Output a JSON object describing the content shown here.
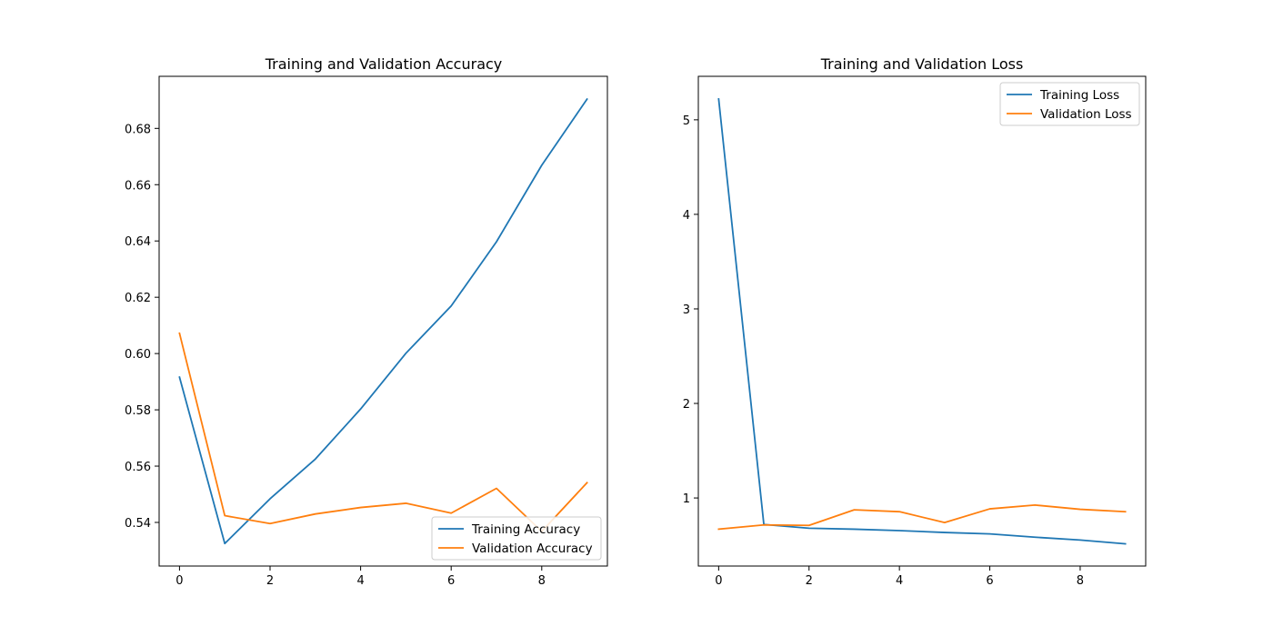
{
  "colors": {
    "series_1": "#1f77b4",
    "series_2": "#ff7f0e"
  },
  "chart_data": [
    {
      "type": "line",
      "title": "Training and Validation Accuracy",
      "xlabel": "",
      "ylabel": "",
      "xlim": [
        -0.45,
        9.45
      ],
      "ylim": [
        0.5245,
        0.6985
      ],
      "xticks": [
        0,
        2,
        4,
        6,
        8
      ],
      "yticks": [
        0.54,
        0.56,
        0.58,
        0.6,
        0.62,
        0.64,
        0.66,
        0.68
      ],
      "ytick_labels": [
        "0.54",
        "0.56",
        "0.58",
        "0.60",
        "0.62",
        "0.64",
        "0.66",
        "0.68"
      ],
      "grid": false,
      "legend": "lower-right",
      "x": [
        0,
        1,
        2,
        3,
        4,
        5,
        6,
        7,
        8,
        9
      ],
      "series": [
        {
          "name": "Training Accuracy",
          "values": [
            0.5916,
            0.5325,
            0.5484,
            0.5625,
            0.5803,
            0.6001,
            0.6169,
            0.6397,
            0.6669,
            0.6904
          ]
        },
        {
          "name": "Validation Accuracy",
          "values": [
            0.6072,
            0.5424,
            0.5396,
            0.543,
            0.5453,
            0.5468,
            0.5433,
            0.5521,
            0.5368,
            0.5541
          ]
        }
      ]
    },
    {
      "type": "line",
      "title": "Training and Validation Loss",
      "xlabel": "",
      "ylabel": "",
      "xlim": [
        -0.45,
        9.45
      ],
      "ylim": [
        0.28,
        5.46
      ],
      "xticks": [
        0,
        2,
        4,
        6,
        8
      ],
      "yticks": [
        1,
        2,
        3,
        4,
        5
      ],
      "ytick_labels": [
        "1",
        "2",
        "3",
        "4",
        "5"
      ],
      "grid": false,
      "legend": "upper-right",
      "x": [
        0,
        1,
        2,
        3,
        4,
        5,
        6,
        7,
        8,
        9
      ],
      "series": [
        {
          "name": "Training Loss",
          "values": [
            5.22,
            0.72,
            0.68,
            0.67,
            0.655,
            0.635,
            0.62,
            0.585,
            0.555,
            0.515
          ]
        },
        {
          "name": "Validation Loss",
          "values": [
            0.67,
            0.715,
            0.71,
            0.875,
            0.855,
            0.74,
            0.885,
            0.925,
            0.88,
            0.855
          ]
        }
      ]
    }
  ]
}
